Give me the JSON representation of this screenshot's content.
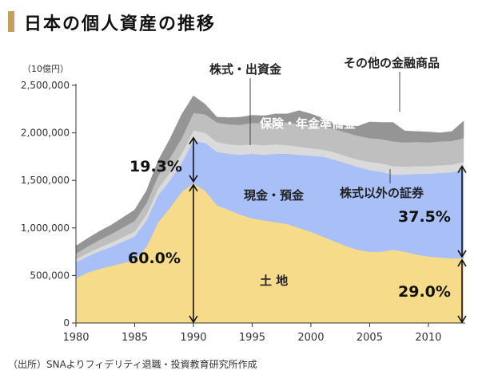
{
  "header": {
    "title": "日本の個人資産の推移"
  },
  "footer": {
    "source": "（出所）SNAよりフィデリティ退職・投資教育研究所作成"
  },
  "chart_data": {
    "type": "area",
    "stacked": true,
    "title": "日本の個人資産の推移",
    "xlabel": "",
    "ylabel": "",
    "yunit": "（10億円）",
    "xlim": [
      1980,
      2013
    ],
    "ylim": [
      0,
      2500000
    ],
    "xticks": [
      "1980",
      "1985",
      "1990",
      "1995",
      "2000",
      "2005",
      "2010"
    ],
    "yticks": [
      "0",
      "500,000",
      "1,000,000",
      "1,500,000",
      "2,000,000",
      "2,500,000"
    ],
    "x": [
      1980,
      1981,
      1982,
      1983,
      1984,
      1985,
      1986,
      1987,
      1988,
      1989,
      1990,
      1991,
      1992,
      1993,
      1994,
      1995,
      1996,
      1997,
      1998,
      1999,
      2000,
      2001,
      2002,
      2003,
      2004,
      2005,
      2006,
      2007,
      2008,
      2009,
      2010,
      2011,
      2012,
      2013
    ],
    "series": [
      {
        "name": "土 地",
        "color": "#f6dc8a",
        "values": [
          470000,
          530000,
          570000,
          600000,
          630000,
          660000,
          800000,
          1060000,
          1210000,
          1380000,
          1470000,
          1390000,
          1240000,
          1190000,
          1140000,
          1100000,
          1080000,
          1060000,
          1040000,
          1000000,
          960000,
          910000,
          860000,
          810000,
          770000,
          750000,
          750000,
          770000,
          750000,
          720000,
          700000,
          690000,
          680000,
          680000
        ]
      },
      {
        "name": "現金・預金",
        "color": "#a8bff7",
        "values": [
          170000,
          170000,
          185000,
          200000,
          225000,
          250000,
          280000,
          285000,
          290000,
          305000,
          445000,
          505000,
          560000,
          590000,
          630000,
          680000,
          690000,
          720000,
          740000,
          770000,
          800000,
          840000,
          860000,
          870000,
          870000,
          860000,
          840000,
          790000,
          810000,
          850000,
          870000,
          890000,
          905000,
          935000
        ]
      },
      {
        "name": "株式以外の証券",
        "color": "#dadada",
        "values": [
          30000,
          35000,
          40000,
          45000,
          50000,
          55000,
          60000,
          70000,
          85000,
          95000,
          110000,
          105000,
          105000,
          100000,
          100000,
          100000,
          100000,
          100000,
          90000,
          85000,
          80000,
          75000,
          75000,
          75000,
          80000,
          85000,
          90000,
          90000,
          85000,
          80000,
          80000,
          80000,
          80000,
          80000
        ]
      },
      {
        "name": "保険・年金準備金",
        "color": "#bfbfbf",
        "values": [
          60000,
          70000,
          80000,
          90000,
          100000,
          110000,
          120000,
          135000,
          150000,
          165000,
          185000,
          195000,
          205000,
          210000,
          215000,
          225000,
          230000,
          235000,
          240000,
          240000,
          240000,
          245000,
          245000,
          250000,
          250000,
          250000,
          255000,
          260000,
          255000,
          255000,
          250000,
          250000,
          250000,
          250000
        ]
      },
      {
        "name": "株式・出資金",
        "color": "#959595",
        "values": [
          80000,
          85000,
          90000,
          95000,
          105000,
          115000,
          130000,
          160000,
          200000,
          250000,
          180000,
          105000,
          55000,
          70000,
          80000,
          80000,
          80000,
          85000,
          90000,
          140000,
          120000,
          85000,
          60000,
          70000,
          100000,
          170000,
          175000,
          200000,
          120000,
          110000,
          110000,
          90000,
          100000,
          180000
        ]
      }
    ],
    "annotations": [
      {
        "text": "19.3%"
      },
      {
        "text": "60.0%"
      },
      {
        "text": "37.5%"
      },
      {
        "text": "29.0%"
      },
      {
        "text": "株式・出資金"
      },
      {
        "text": "その他の金融商品"
      },
      {
        "text": "保険・年金準備金"
      },
      {
        "text": "現金・預金"
      },
      {
        "text": "株式以外の証券"
      },
      {
        "text": "土 地"
      }
    ]
  }
}
